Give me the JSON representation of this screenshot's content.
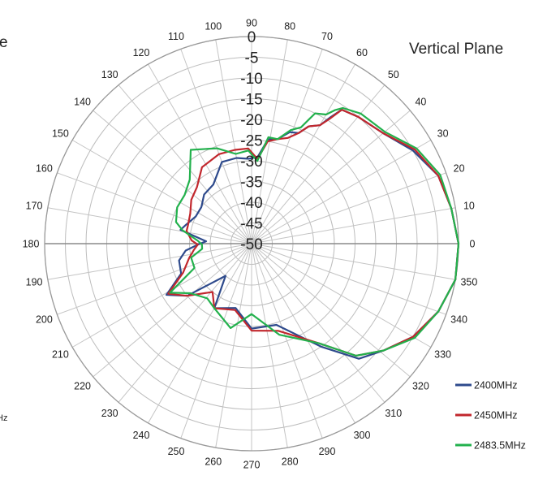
{
  "chart_data": {
    "type": "polar-line",
    "title": "Vertical Plane",
    "cropped_text": [
      "e",
      "Hz"
    ],
    "radial_axis": {
      "range": [
        -50,
        0
      ],
      "ticks": [
        0,
        -5,
        -10,
        -15,
        -20,
        -25,
        -30,
        -35,
        -40,
        -45,
        -50
      ],
      "tick_labels": [
        "0",
        "-5",
        "-10",
        "-15",
        "-20",
        "-25",
        "-30",
        "-35",
        "-40",
        "-45",
        "-50"
      ]
    },
    "angular_axis": {
      "unit": "degrees",
      "direction": "counterclockwise",
      "zero_at": "right",
      "ticks": [
        0,
        10,
        20,
        30,
        40,
        50,
        60,
        70,
        80,
        90,
        100,
        110,
        120,
        130,
        140,
        150,
        160,
        170,
        180,
        190,
        200,
        210,
        220,
        230,
        240,
        250,
        260,
        270,
        280,
        290,
        300,
        310,
        320,
        330,
        340,
        350
      ],
      "tick_labels": [
        "0",
        "10",
        "20",
        "30",
        "40",
        "50",
        "60",
        "70",
        "80",
        "90",
        "100",
        "110",
        "120",
        "130",
        "140",
        "150",
        "160",
        "170",
        "180",
        "190",
        "200",
        "210",
        "220",
        "230",
        "240",
        "250",
        "260",
        "270",
        "280",
        "290",
        "300",
        "310",
        "320",
        "330",
        "340",
        "350"
      ]
    },
    "grid": true,
    "legend_position": "bottom-right",
    "series": [
      {
        "name": "2400MHz",
        "color": "#2E4A8C",
        "points": [
          [
            0,
            0
          ],
          [
            10,
            -1
          ],
          [
            20,
            -2
          ],
          [
            30,
            -5
          ],
          [
            40,
            -8.5
          ],
          [
            50,
            -10
          ],
          [
            56,
            -11
          ],
          [
            58,
            -14
          ],
          [
            60,
            -17
          ],
          [
            64,
            -18.5
          ],
          [
            67,
            -21
          ],
          [
            71,
            -21.5
          ],
          [
            76,
            -24
          ],
          [
            81,
            -24.5
          ],
          [
            86,
            -29
          ],
          [
            92,
            -29.5
          ],
          [
            100,
            -29
          ],
          [
            110,
            -29
          ],
          [
            123,
            -33
          ],
          [
            134,
            -33.5
          ],
          [
            144,
            -35
          ],
          [
            154,
            -35
          ],
          [
            164,
            -33.5
          ],
          [
            169,
            -32.5
          ],
          [
            177,
            -39
          ],
          [
            181,
            -37
          ],
          [
            186,
            -34
          ],
          [
            193,
            -32
          ],
          [
            203,
            -31.5
          ],
          [
            211,
            -26
          ],
          [
            219,
            -30
          ],
          [
            231,
            -40
          ],
          [
            240,
            -32
          ],
          [
            256,
            -34
          ],
          [
            270,
            -29.5
          ],
          [
            287,
            -29.5
          ],
          [
            304,
            -20
          ],
          [
            313,
            -12
          ],
          [
            321,
            -9
          ],
          [
            330,
            -5
          ],
          [
            340,
            -2
          ],
          [
            350,
            0
          ]
        ]
      },
      {
        "name": "2450MHz",
        "color": "#C1272D",
        "points": [
          [
            0,
            0
          ],
          [
            10,
            -1
          ],
          [
            20,
            -2
          ],
          [
            30,
            -4.5
          ],
          [
            40,
            -8.5
          ],
          [
            50,
            -10
          ],
          [
            56,
            -11
          ],
          [
            58,
            -14.5
          ],
          [
            60,
            -17
          ],
          [
            64,
            -18.5
          ],
          [
            67,
            -21
          ],
          [
            71,
            -23
          ],
          [
            76,
            -24
          ],
          [
            81,
            -25
          ],
          [
            86,
            -29.5
          ],
          [
            92,
            -27
          ],
          [
            100,
            -27
          ],
          [
            110,
            -27
          ],
          [
            123,
            -28
          ],
          [
            134,
            -31
          ],
          [
            144,
            -32
          ],
          [
            154,
            -33.5
          ],
          [
            164,
            -34
          ],
          [
            169,
            -34
          ],
          [
            177,
            -35.5
          ],
          [
            181,
            -37
          ],
          [
            186,
            -36
          ],
          [
            193,
            -34.5
          ],
          [
            203,
            -32
          ],
          [
            211,
            -26.5
          ],
          [
            219,
            -30
          ],
          [
            231,
            -35
          ],
          [
            240,
            -32
          ],
          [
            256,
            -33.5
          ],
          [
            270,
            -29
          ],
          [
            287,
            -28
          ],
          [
            304,
            -21
          ],
          [
            313,
            -13
          ],
          [
            321,
            -9
          ],
          [
            330,
            -5
          ],
          [
            340,
            -2
          ],
          [
            350,
            0
          ]
        ]
      },
      {
        "name": "2483.5MHz",
        "color": "#23B14D",
        "points": [
          [
            0,
            0
          ],
          [
            10,
            -1
          ],
          [
            20,
            -1.5
          ],
          [
            30,
            -4
          ],
          [
            40,
            -8
          ],
          [
            50,
            -9
          ],
          [
            56,
            -10.5
          ],
          [
            58,
            -12
          ],
          [
            60,
            -14
          ],
          [
            64,
            -15
          ],
          [
            67,
            -19.5
          ],
          [
            71,
            -21
          ],
          [
            76,
            -24
          ],
          [
            81,
            -24
          ],
          [
            86,
            -30
          ],
          [
            92,
            -27.5
          ],
          [
            100,
            -28
          ],
          [
            110,
            -25.5
          ],
          [
            123,
            -23
          ],
          [
            134,
            -28.5
          ],
          [
            144,
            -30
          ],
          [
            154,
            -30
          ],
          [
            164,
            -31
          ],
          [
            169,
            -33
          ],
          [
            177,
            -37
          ],
          [
            181,
            -38
          ],
          [
            186,
            -38
          ],
          [
            193,
            -35
          ],
          [
            203,
            -35
          ],
          [
            211,
            -27
          ],
          [
            219,
            -31
          ],
          [
            231,
            -33
          ],
          [
            240,
            -32
          ],
          [
            256,
            -29
          ],
          [
            270,
            -33
          ],
          [
            287,
            -27
          ],
          [
            304,
            -21
          ],
          [
            313,
            -13
          ],
          [
            321,
            -9
          ],
          [
            330,
            -4.5
          ],
          [
            340,
            -2
          ],
          [
            350,
            0
          ]
        ]
      }
    ]
  }
}
